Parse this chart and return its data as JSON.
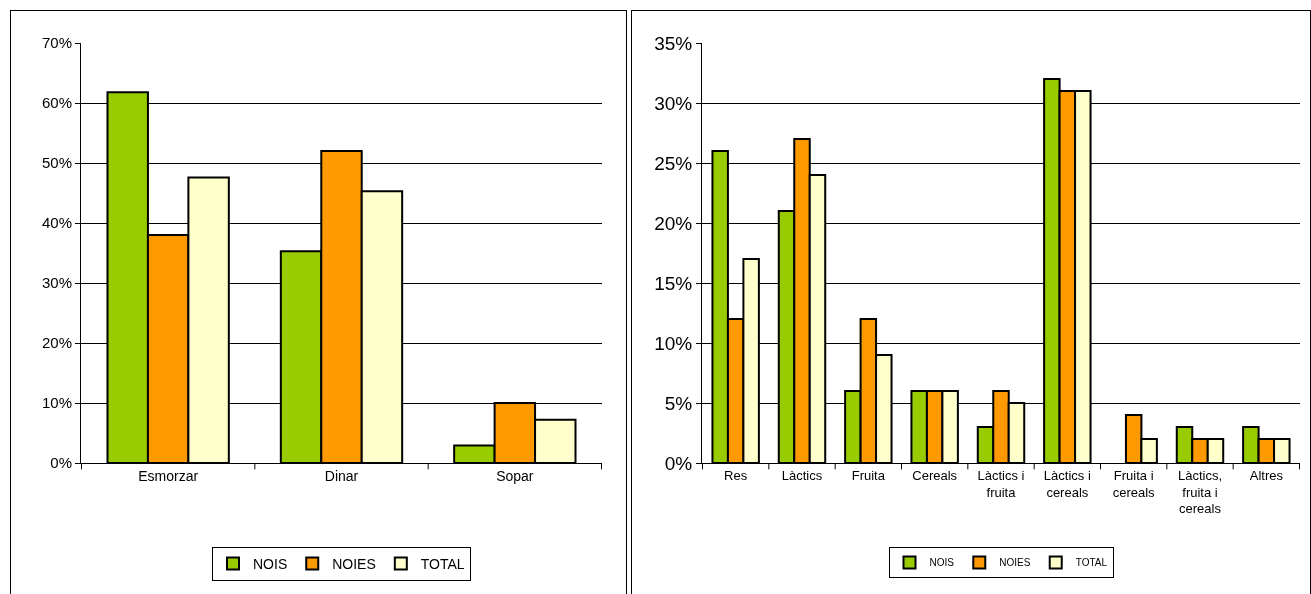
{
  "chart_data": [
    {
      "type": "bar",
      "categories": [
        "Esmorzar",
        "Dinar",
        "Sopar"
      ],
      "series": [
        {
          "name": "NOIS",
          "color": "#99cc00",
          "values": [
            61.8,
            35.3,
            2.9
          ]
        },
        {
          "name": "NOIES",
          "color": "#ff9900",
          "values": [
            38,
            52,
            10
          ]
        },
        {
          "name": "TOTAL",
          "color": "#ffffcc",
          "values": [
            47.6,
            45.3,
            7.2
          ]
        }
      ],
      "ylim": [
        0,
        70
      ],
      "yticks": [
        {
          "value": 0,
          "label": "0%"
        },
        {
          "value": 10,
          "label": "10%"
        },
        {
          "value": 20,
          "label": "20%"
        },
        {
          "value": 30,
          "label": "30%"
        },
        {
          "value": 40,
          "label": "40%"
        },
        {
          "value": 50,
          "label": "50%"
        },
        {
          "value": 60,
          "label": "60%"
        },
        {
          "value": 70,
          "label": "70%"
        }
      ],
      "grid": "y",
      "legend": "bottom"
    },
    {
      "type": "bar",
      "categories": [
        "Res",
        "Làctics",
        "Fruita",
        "Cereals",
        "Làctics i fruita",
        "Làctics i cereals",
        "Fruita i cereals",
        "Làctics, fruita i cereals",
        "Altres"
      ],
      "series": [
        {
          "name": "NOIS",
          "color": "#99cc00",
          "values": [
            26,
            21,
            6,
            6,
            3,
            32,
            null,
            3,
            3
          ]
        },
        {
          "name": "NOIES",
          "color": "#ff9900",
          "values": [
            12,
            27,
            12,
            6,
            6,
            31,
            4,
            2,
            2
          ]
        },
        {
          "name": "TOTAL",
          "color": "#ffffcc",
          "values": [
            17,
            24,
            9,
            6,
            5,
            31,
            2,
            2,
            2
          ]
        }
      ],
      "ylim": [
        0,
        35
      ],
      "yticks": [
        {
          "value": 0,
          "label": "0%"
        },
        {
          "value": 5,
          "label": "5%"
        },
        {
          "value": 10,
          "label": "10%"
        },
        {
          "value": 15,
          "label": "15%"
        },
        {
          "value": 20,
          "label": "20%"
        },
        {
          "value": 25,
          "label": "25%"
        },
        {
          "value": 30,
          "label": "30%"
        },
        {
          "value": 35,
          "label": "35%"
        }
      ],
      "grid": "y",
      "legend": "bottom"
    }
  ]
}
